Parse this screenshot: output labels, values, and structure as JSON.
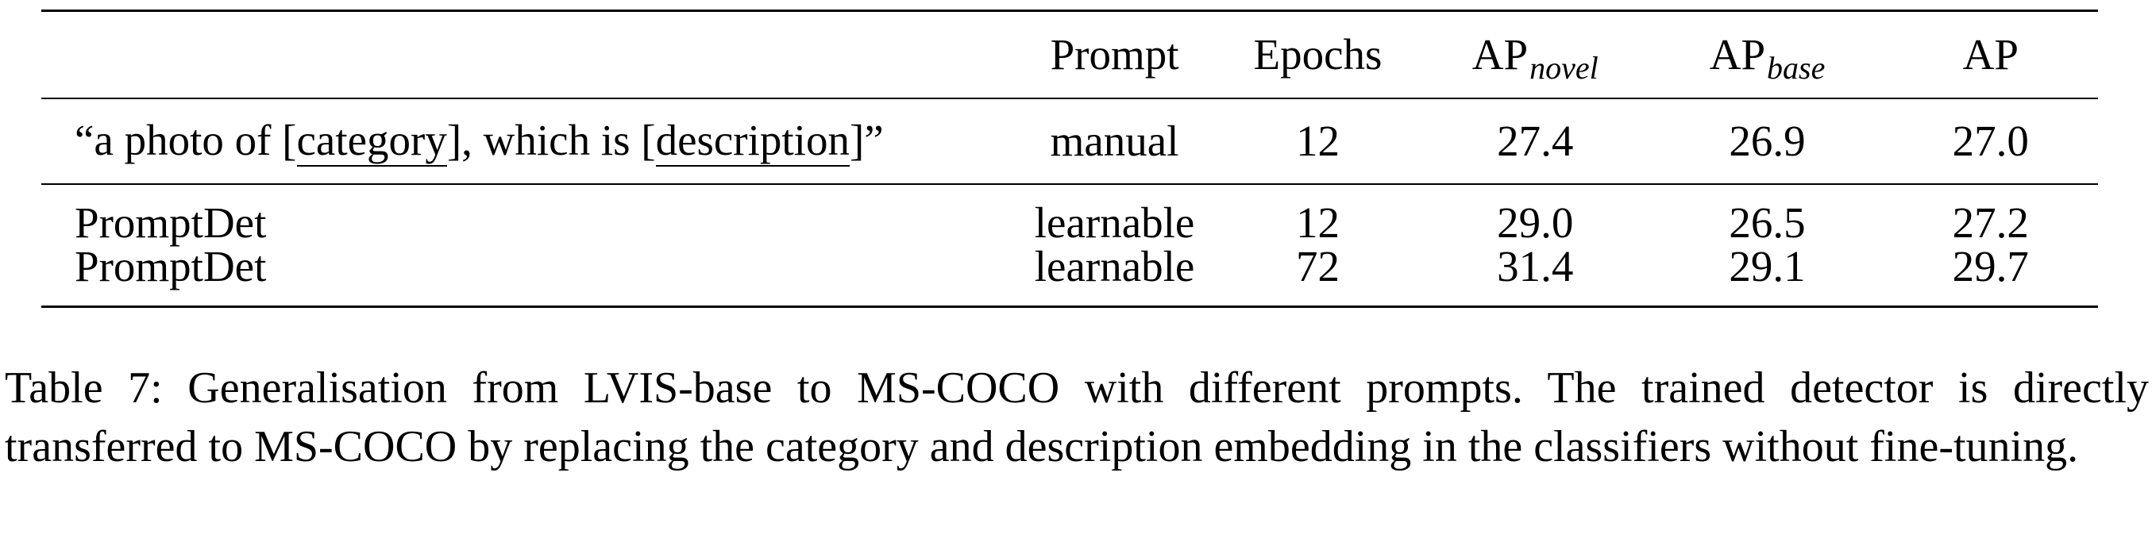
{
  "table": {
    "headers": {
      "method": "",
      "prompt": "Prompt",
      "epochs": "Epochs",
      "ap_novel_base": "AP",
      "ap_novel_sub": "novel",
      "ap_base_base": "AP",
      "ap_base_sub": "base",
      "ap": "AP"
    },
    "template_row": {
      "open_quote": "“a photo of [",
      "category": "category",
      "middle": "], which is [",
      "description": "description",
      "close_quote": "]”",
      "prompt": "manual",
      "epochs": "12",
      "ap_novel": "27.4",
      "ap_base": "26.9",
      "ap": "27.0"
    },
    "rows": [
      {
        "method": "PromptDet",
        "prompt": "learnable",
        "epochs": "12",
        "ap_novel": "29.0",
        "ap_base": "26.5",
        "ap": "27.2"
      },
      {
        "method": "PromptDet",
        "prompt": "learnable",
        "epochs": "72",
        "ap_novel": "31.4",
        "ap_base": "29.1",
        "ap": "29.7"
      }
    ]
  },
  "caption": "Table 7: Generalisation from LVIS-base to MS-COCO with different prompts. The trained detector is directly transferred to MS-COCO by replacing the category and description embedding in the classifiers without fine-tuning."
}
